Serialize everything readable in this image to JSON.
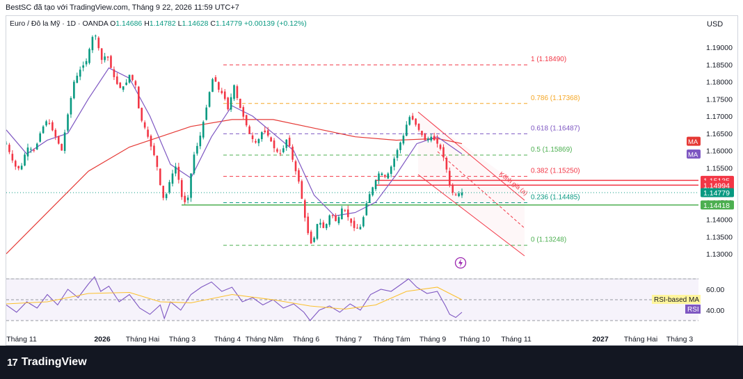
{
  "header": {
    "title": "BestSC đã tạo với TradingView.com, Tháng 9 22, 2026 11:59 UTC+7"
  },
  "legend": {
    "symbol": "Euro / Đô la Mỹ · 1D · OANDA",
    "o_label": "O",
    "o": "1.14686",
    "h_label": "H",
    "h": "1.14782",
    "l_label": "L",
    "l": "1.14628",
    "c_label": "C",
    "c": "1.14779",
    "change": "+0.00139 (+0.12%)"
  },
  "currency": "USD",
  "footer": {
    "brand": "TradingView"
  },
  "colors": {
    "up": "#089981",
    "down": "#f23645",
    "ma_fast": "#7e57c2",
    "ma_slow": "#e53935",
    "rsi": "#7e57c2",
    "rsi_ma": "#fbc02d",
    "green_line": "#4caf50"
  },
  "chart_data": {
    "type": "candlestick",
    "instrument": "Euro / Đô la Mỹ",
    "timeframe": "1D",
    "price_axis": {
      "ticks": [
        "1.19000",
        "1.18500",
        "1.18000",
        "1.17500",
        "1.17000",
        "1.16500",
        "1.16000",
        "1.15500",
        "1.15000",
        "1.14500",
        "1.14000",
        "1.13500",
        "1.13000"
      ],
      "ylim": [
        1.128,
        1.193
      ]
    },
    "x_axis": {
      "ticks": [
        "Tháng 11",
        "2026",
        "Tháng Hai",
        "Tháng 3",
        "Tháng 4",
        "Tháng Năm",
        "Tháng 6",
        "Tháng 7",
        "Tháng Tám",
        "Tháng 9",
        "Tháng 10",
        "Tháng 11",
        "2027",
        "Tháng Hai",
        "Tháng 3"
      ]
    },
    "price_path": [
      [
        0,
        1.162
      ],
      [
        8,
        1.1555
      ],
      [
        14,
        1.1545
      ],
      [
        20,
        1.161
      ],
      [
        28,
        1.16
      ],
      [
        34,
        1.166
      ],
      [
        40,
        1.169
      ],
      [
        48,
        1.164
      ],
      [
        54,
        1.16
      ],
      [
        60,
        1.1705
      ],
      [
        66,
        1.18
      ],
      [
        72,
        1.1835
      ],
      [
        78,
        1.186
      ],
      [
        84,
        1.193
      ],
      [
        88,
        1.1935
      ],
      [
        92,
        1.186
      ],
      [
        98,
        1.188
      ],
      [
        104,
        1.182
      ],
      [
        110,
        1.178
      ],
      [
        116,
        1.179
      ],
      [
        120,
        1.182
      ],
      [
        126,
        1.179
      ],
      [
        130,
        1.17
      ],
      [
        136,
        1.166
      ],
      [
        140,
        1.162
      ],
      [
        146,
        1.157
      ],
      [
        150,
        1.15
      ],
      [
        154,
        1.145
      ],
      [
        160,
        1.152
      ],
      [
        166,
        1.156
      ],
      [
        170,
        1.147
      ],
      [
        176,
        1.144
      ],
      [
        182,
        1.158
      ],
      [
        188,
        1.163
      ],
      [
        194,
        1.171
      ],
      [
        198,
        1.177
      ],
      [
        202,
        1.182
      ],
      [
        206,
        1.178
      ],
      [
        212,
        1.176
      ],
      [
        216,
        1.172
      ],
      [
        222,
        1.179
      ],
      [
        226,
        1.174
      ],
      [
        232,
        1.169
      ],
      [
        238,
        1.164
      ],
      [
        244,
        1.162
      ],
      [
        250,
        1.166
      ],
      [
        256,
        1.164
      ],
      [
        262,
        1.16
      ],
      [
        268,
        1.159
      ],
      [
        274,
        1.164
      ],
      [
        280,
        1.156
      ],
      [
        286,
        1.15
      ],
      [
        290,
        1.142
      ],
      [
        294,
        1.136
      ],
      [
        298,
        1.132
      ],
      [
        304,
        1.14
      ],
      [
        310,
        1.137
      ],
      [
        316,
        1.142
      ],
      [
        322,
        1.139
      ],
      [
        328,
        1.144
      ],
      [
        334,
        1.14
      ],
      [
        340,
        1.137
      ],
      [
        346,
        1.138
      ],
      [
        352,
        1.146
      ],
      [
        358,
        1.15
      ],
      [
        364,
        1.154
      ],
      [
        370,
        1.152
      ],
      [
        376,
        1.156
      ],
      [
        382,
        1.161
      ],
      [
        388,
        1.165
      ],
      [
        392,
        1.17
      ],
      [
        396,
        1.169
      ],
      [
        402,
        1.166
      ],
      [
        408,
        1.163
      ],
      [
        414,
        1.164
      ],
      [
        420,
        1.162
      ],
      [
        424,
        1.16
      ],
      [
        428,
        1.156
      ],
      [
        432,
        1.15
      ],
      [
        436,
        1.147
      ],
      [
        440,
        1.1475
      ],
      [
        444,
        1.14779
      ]
    ],
    "series": [
      {
        "type": "line",
        "values": [
          [
            0,
            1.13
          ],
          [
            40,
            1.142
          ],
          [
            80,
            1.154
          ],
          [
            120,
            1.161
          ],
          [
            150,
            1.164
          ],
          [
            180,
            1.167
          ],
          [
            220,
            1.169
          ],
          [
            260,
            1.169
          ],
          [
            300,
            1.1665
          ],
          [
            340,
            1.164
          ],
          [
            380,
            1.163
          ],
          [
            420,
            1.1635
          ],
          [
            444,
            1.162
          ]
        ]
      },
      {
        "type": "line",
        "values": [
          [
            0,
            1.166
          ],
          [
            20,
            1.159
          ],
          [
            40,
            1.163
          ],
          [
            60,
            1.165
          ],
          [
            80,
            1.175
          ],
          [
            100,
            1.184
          ],
          [
            120,
            1.181
          ],
          [
            140,
            1.17
          ],
          [
            160,
            1.156
          ],
          [
            180,
            1.152
          ],
          [
            200,
            1.164
          ],
          [
            220,
            1.173
          ],
          [
            240,
            1.17
          ],
          [
            260,
            1.165
          ],
          [
            280,
            1.16
          ],
          [
            300,
            1.147
          ],
          [
            320,
            1.141
          ],
          [
            340,
            1.142
          ],
          [
            360,
            1.145
          ],
          [
            380,
            1.153
          ],
          [
            400,
            1.162
          ],
          [
            420,
            1.164
          ],
          [
            444,
            1.159
          ]
        ]
      }
    ],
    "fibonacci": [
      {
        "label": "1 (1.18490)",
        "value": 1.1849,
        "color": "#f23645"
      },
      {
        "label": "0.786 (1.17368)",
        "value": 1.17368,
        "color": "#f5a623"
      },
      {
        "label": "0.618 (1.16487)",
        "value": 1.16487,
        "color": "#7e57c2"
      },
      {
        "label": "0.5 (1.15869)",
        "value": 1.15869,
        "color": "#4caf50"
      },
      {
        "label": "0.382 (1.15250)",
        "value": 1.1525,
        "color": "#f23645"
      },
      {
        "label": "0.236 (1.14485)",
        "value": 1.14485,
        "color": "#089981"
      },
      {
        "label": "0 (1.13248)",
        "value": 1.13248,
        "color": "#4caf50"
      }
    ],
    "horizontal_lines": [
      {
        "value": 1.15135,
        "color": "#f23645"
      },
      {
        "value": 1.14994,
        "color": "#f23645"
      },
      {
        "value": 1.14418,
        "color": "#4caf50"
      },
      {
        "value": 1.14779,
        "color": "#089981",
        "style": "dotted"
      }
    ],
    "price_labels": [
      {
        "text": "1.15135",
        "value": 1.15135,
        "bg": "#f23645"
      },
      {
        "text": "1.14994",
        "value": 1.14994,
        "bg": "#f23645"
      },
      {
        "text": "1.14779",
        "value": 1.14779,
        "bg": "#089981"
      },
      {
        "text": "1.14418",
        "value": 1.14418,
        "bg": "#4caf50"
      }
    ],
    "ma_badges": [
      {
        "text": "MA",
        "bg": "#e53935",
        "value": 1.1627
      },
      {
        "text": "MA",
        "bg": "#7e57c2",
        "value": 1.159
      }
    ],
    "channel": {
      "label": "Kênh giá (a)",
      "color": "#f23645"
    },
    "rsi": {
      "ticks": [
        "60.00",
        "40.00"
      ],
      "ylim": [
        25,
        75
      ],
      "rsi_values": [
        [
          0,
          45
        ],
        [
          10,
          38
        ],
        [
          20,
          48
        ],
        [
          30,
          42
        ],
        [
          40,
          55
        ],
        [
          50,
          45
        ],
        [
          60,
          60
        ],
        [
          70,
          52
        ],
        [
          80,
          65
        ],
        [
          86,
          72
        ],
        [
          92,
          58
        ],
        [
          100,
          63
        ],
        [
          110,
          48
        ],
        [
          120,
          55
        ],
        [
          130,
          42
        ],
        [
          140,
          36
        ],
        [
          150,
          45
        ],
        [
          154,
          32
        ],
        [
          160,
          48
        ],
        [
          170,
          40
        ],
        [
          180,
          55
        ],
        [
          190,
          62
        ],
        [
          200,
          67
        ],
        [
          210,
          58
        ],
        [
          220,
          62
        ],
        [
          230,
          48
        ],
        [
          240,
          52
        ],
        [
          250,
          45
        ],
        [
          260,
          50
        ],
        [
          270,
          42
        ],
        [
          280,
          46
        ],
        [
          290,
          38
        ],
        [
          296,
          30
        ],
        [
          305,
          40
        ],
        [
          315,
          44
        ],
        [
          325,
          38
        ],
        [
          335,
          46
        ],
        [
          345,
          40
        ],
        [
          355,
          55
        ],
        [
          365,
          60
        ],
        [
          375,
          58
        ],
        [
          385,
          65
        ],
        [
          392,
          70
        ],
        [
          400,
          62
        ],
        [
          410,
          56
        ],
        [
          420,
          58
        ],
        [
          428,
          44
        ],
        [
          432,
          36
        ],
        [
          438,
          33
        ],
        [
          444,
          38
        ]
      ],
      "rsi_ma_values": [
        [
          0,
          46
        ],
        [
          40,
          48
        ],
        [
          80,
          56
        ],
        [
          120,
          57
        ],
        [
          150,
          48
        ],
        [
          180,
          47
        ],
        [
          220,
          55
        ],
        [
          260,
          50
        ],
        [
          296,
          44
        ],
        [
          330,
          41
        ],
        [
          360,
          45
        ],
        [
          390,
          58
        ],
        [
          420,
          62
        ],
        [
          444,
          50
        ]
      ],
      "label_rsi": "RSI",
      "label_rsi_ma": "RSI-based MA"
    }
  }
}
